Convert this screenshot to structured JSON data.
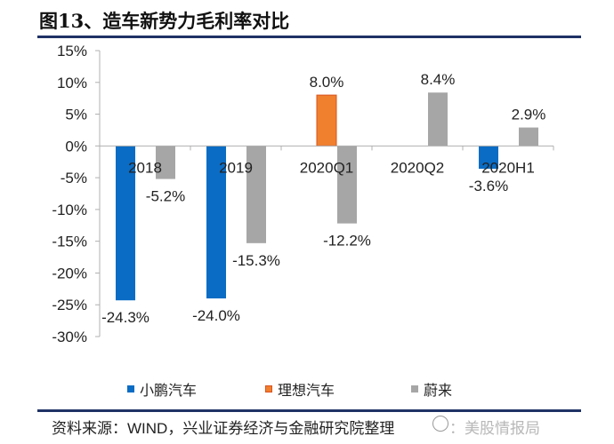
{
  "title": "图13、造车新势力毛利率对比",
  "source": {
    "prefix": "资料来源：",
    "en": "WIND",
    "suffix": "，兴业证券经济与金融研究院整理"
  },
  "watermark": "：美股情报局",
  "colors": {
    "xpeng": "#0a6cc4",
    "li": "#f07f2e",
    "li_border": "#d9531e",
    "nio": "#a6a6a6",
    "axis": "#b0b0b0",
    "rule": "#1f3266"
  },
  "chart_data": {
    "type": "bar",
    "title": "图13、造车新势力毛利率对比",
    "categories": [
      "2018",
      "2019",
      "2020Q1",
      "2020Q2",
      "2020H1"
    ],
    "series": [
      {
        "name": "小鹏汽车",
        "color": "#0a6cc4",
        "values": [
          -24.3,
          -24.0,
          null,
          null,
          -3.6
        ],
        "labels": [
          "-24.3%",
          "-24.0%",
          null,
          null,
          "-3.6%"
        ]
      },
      {
        "name": "理想汽车",
        "color": "#f07f2e",
        "values": [
          null,
          null,
          8.0,
          null,
          null
        ],
        "labels": [
          null,
          null,
          "8.0%",
          null,
          null
        ]
      },
      {
        "name": "蔚来",
        "color": "#a6a6a6",
        "values": [
          -5.2,
          -15.3,
          -12.2,
          8.4,
          2.9
        ],
        "labels": [
          "-5.2%",
          "-15.3%",
          "-12.2%",
          "8.4%",
          "2.9%"
        ]
      }
    ],
    "yticks": [
      15,
      10,
      5,
      0,
      -5,
      -10,
      -15,
      -20,
      -25,
      -30
    ],
    "ytick_labels": [
      "15%",
      "10%",
      "5%",
      "0%",
      "-5%",
      "-10%",
      "-15%",
      "-20%",
      "-25%",
      "-30%"
    ],
    "ylim": [
      -30,
      15
    ],
    "xlabel": "",
    "ylabel": "",
    "grid": false,
    "legend_position": "bottom"
  }
}
